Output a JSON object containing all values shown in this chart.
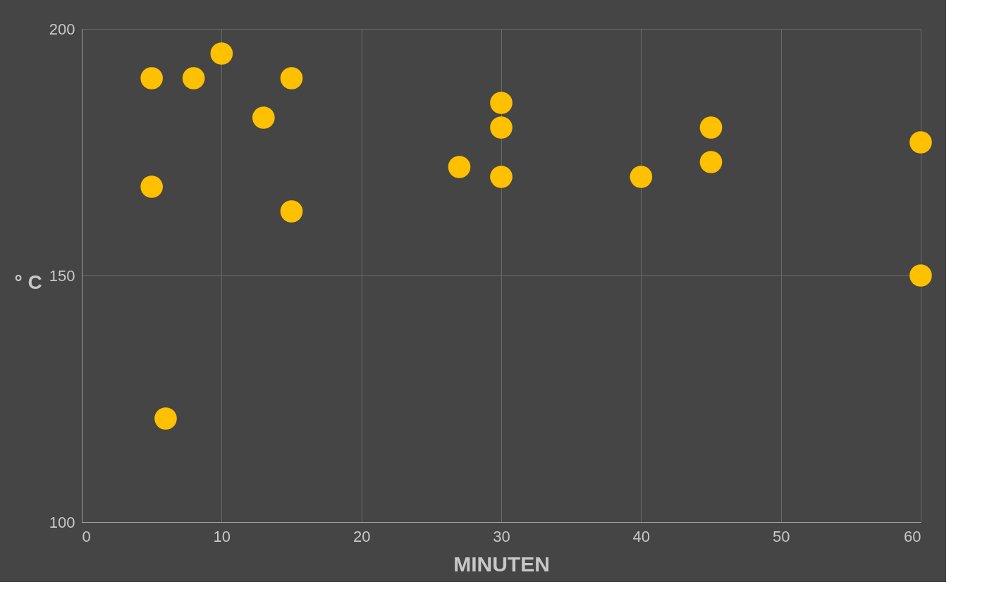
{
  "chart_data": {
    "type": "scatter",
    "xlabel": "MINUTEN",
    "ylabel": "° C",
    "x": [
      5,
      8,
      10,
      15,
      13,
      5,
      15,
      6,
      27,
      30,
      30,
      30,
      40,
      45,
      45,
      60,
      60
    ],
    "series": [
      {
        "color": "#ffc000",
        "values": [
          190,
          190,
          195,
          190,
          182,
          168,
          163,
          121,
          172,
          185,
          180,
          170,
          170,
          180,
          173,
          177,
          150
        ]
      }
    ],
    "xlim": [
      0,
      60
    ],
    "xticks": [
      0,
      10,
      20,
      30,
      40,
      50,
      60
    ],
    "ylim": [
      100,
      200
    ],
    "yticks": [
      100,
      150,
      200
    ],
    "grid": true,
    "marker": "circle",
    "legend": false
  }
}
